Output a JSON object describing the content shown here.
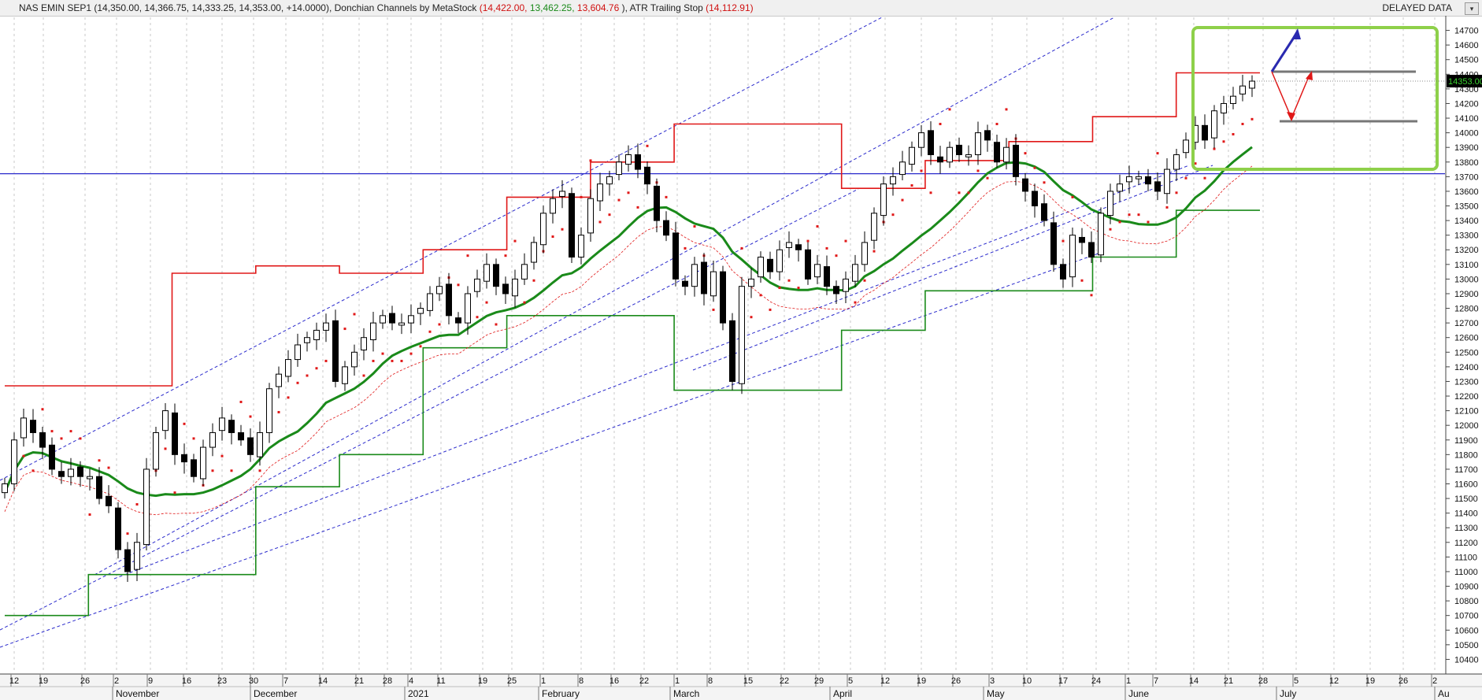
{
  "header": {
    "symbol": "NAS EMIN SEP1",
    "ohlc": "(14,350.00, 14,366.75, 14,333.25, 14,353.00, +14.0000),",
    "donchian_label": "Donchian Channels by MetaStock",
    "donchian_values": [
      "(14,422.00,",
      "13,462.25,",
      "13,604.76",
      "),"
    ],
    "atr_label": "ATR Trailing Stop",
    "atr_value": "(14,112.91)",
    "status": "DELAYED DATA",
    "dropdown_glyph": "▾"
  },
  "colors": {
    "candle_up": "#ffffff",
    "candle_down": "#000000",
    "donchian_upper": "#e01818",
    "donchian_lower": "#1a8a1a",
    "donchian_mid": "#1a8a1a",
    "atr_dots": "#e01818",
    "trendlines": "#2a2acc",
    "horizontal_line": "#2a2acc",
    "highlight_box": "#8ed04a"
  },
  "chart_data": {
    "type": "candlestick",
    "ylim": [
      10300,
      14800
    ],
    "y_ticks": [
      10400,
      10500,
      10600,
      10700,
      10800,
      10900,
      11000,
      11100,
      11200,
      11300,
      11400,
      11500,
      11600,
      11700,
      11800,
      11900,
      12000,
      12100,
      12200,
      12300,
      12400,
      12500,
      12600,
      12700,
      12800,
      12900,
      13000,
      13100,
      13200,
      13300,
      13400,
      13500,
      13600,
      13700,
      13800,
      13900,
      14000,
      14100,
      14200,
      14300,
      14400,
      14500,
      14600,
      14700
    ],
    "last_price_label": "14353.00",
    "horizontal_level": 13720,
    "x_day_labels": [
      "12",
      "19",
      "26",
      "2",
      "9",
      "16",
      "23",
      "30",
      "7",
      "14",
      "21",
      "28",
      "4",
      "11",
      "19",
      "25",
      "1",
      "8",
      "16",
      "22",
      "1",
      "8",
      "15",
      "22",
      "29",
      "5",
      "12",
      "19",
      "26",
      "3",
      "10",
      "17",
      "24",
      "1",
      "7",
      "14",
      "21",
      "28",
      "5",
      "12",
      "19",
      "26",
      "2"
    ],
    "x_month_labels": [
      "November",
      "December",
      "2021",
      "February",
      "March",
      "April",
      "May",
      "June",
      "July",
      "Au"
    ],
    "closes": [
      11600,
      11900,
      12050,
      11950,
      11850,
      11700,
      11650,
      11700,
      11650,
      11650,
      11500,
      11450,
      11150,
      11000,
      11200,
      11700,
      11950,
      12100,
      11800,
      11750,
      11650,
      11850,
      11950,
      12050,
      11950,
      11900,
      11800,
      11950,
      12250,
      12350,
      12450,
      12550,
      12600,
      12650,
      12700,
      12300,
      12400,
      12500,
      12600,
      12700,
      12750,
      12700,
      12700,
      12750,
      12800,
      12900,
      12950,
      12750,
      12700,
      12900,
      13000,
      13100,
      12950,
      12900,
      13000,
      13100,
      13250,
      13450,
      13550,
      13600,
      13150,
      13300,
      13550,
      13650,
      13700,
      13800,
      13850,
      13750,
      13650,
      13400,
      13300,
      13000,
      12950,
      13100,
      12900,
      13050,
      12700,
      12300,
      12950,
      13000,
      13150,
      13050,
      13200,
      13250,
      13200,
      13000,
      13100,
      12950,
      12900,
      13000,
      13100,
      13250,
      13450,
      13650,
      13700,
      13800,
      13900,
      14000,
      13850,
      13800,
      13900,
      13850,
      13850,
      14000,
      13950,
      13800,
      13900,
      13700,
      13600,
      13500,
      13400,
      13100,
      13000,
      13300,
      13250,
      13150,
      13450,
      13600,
      13650,
      13700,
      13700,
      13650,
      13600,
      13750,
      13850,
      13950,
      14050,
      13950,
      14150,
      14200,
      14250,
      14320,
      14353
    ],
    "donchian_upper_levels": [
      12270,
      12270,
      13040,
      13090,
      13040,
      13200,
      13560,
      13800,
      14060,
      14060,
      13620,
      13810,
      13940,
      14110,
      14410
    ],
    "donchian_lower_levels": [
      10700,
      10980,
      10980,
      11580,
      11800,
      12530,
      12750,
      12750,
      12240,
      12240,
      12650,
      12920,
      12920,
      13150,
      13470
    ],
    "atr_stop_last": 14112.91
  }
}
